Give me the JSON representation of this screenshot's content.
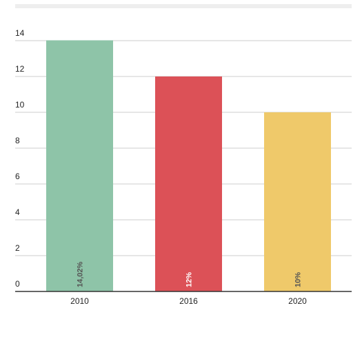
{
  "chart_data": {
    "type": "bar",
    "categories": [
      "2010",
      "2016",
      "2020"
    ],
    "values": [
      14.02,
      12,
      10
    ],
    "data_labels": [
      "14,02%",
      "12%",
      "10%"
    ],
    "colors": [
      "#8ec4a8",
      "#dc5157",
      "#efc96a"
    ],
    "label_colors": [
      "#555555",
      "#ffffff",
      "#555555"
    ],
    "y_ticks": [
      "0",
      "2",
      "4",
      "6",
      "8",
      "10",
      "12",
      "14"
    ],
    "ylim": [
      0,
      14
    ],
    "grid": true,
    "title": "",
    "xlabel": "",
    "ylabel": ""
  }
}
